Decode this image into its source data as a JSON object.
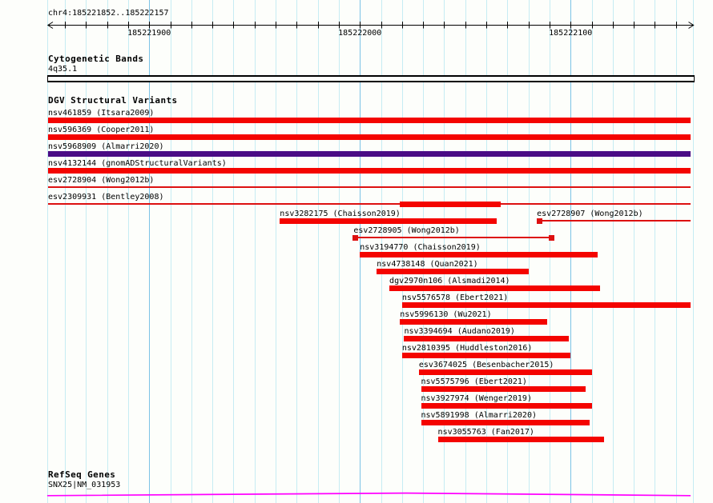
{
  "tracks": {
    "cytobands": {
      "title": "Cytogenetic Bands",
      "band": "4q35.1"
    },
    "dgv": {
      "title": "DGV Structural Variants"
    },
    "refseq": {
      "title": "RefSeq Genes",
      "gene": "SNX25|NM_031953"
    }
  },
  "colors": {
    "bar_red": "#f40400",
    "bar_purple": "#4a0c85",
    "thin_red": "#dd1010",
    "gene_magenta": "#ff00ff",
    "grid_minor": "#c6ecf3",
    "grid_major": "#7cc3e6",
    "ruler_black": "#000000",
    "background": "#fdfefb"
  },
  "chart_data": {
    "type": "genome-tracks",
    "view": {
      "chrom": "chr4",
      "start": 185221852,
      "end": 185222157,
      "label": "chr4:185221852..185222157"
    },
    "ruler": {
      "minor_step_bp": 10,
      "major_ticks": [
        {
          "bp": 185221900,
          "label": "185221900"
        },
        {
          "bp": 185222000,
          "label": "185222000"
        },
        {
          "bp": 185222100,
          "label": "185222100"
        }
      ]
    },
    "cytoband": {
      "start": 185221852,
      "end": 185222157
    },
    "variant_rows": [
      [
        {
          "id": "nsv461859",
          "label": "nsv461859 (Itsara2009)",
          "glyph": "bar",
          "start": 185221852,
          "end": 185222157,
          "color": "bar_red"
        }
      ],
      [
        {
          "id": "nsv596369",
          "label": "nsv596369 (Cooper2011)",
          "glyph": "bar",
          "start": 185221852,
          "end": 185222157,
          "color": "bar_red"
        }
      ],
      [
        {
          "id": "nsv5968909",
          "label": "nsv5968909 (Almarri2020)",
          "glyph": "bar",
          "start": 185221852,
          "end": 185222157,
          "color": "bar_purple"
        }
      ],
      [
        {
          "id": "nsv4132144",
          "label": "nsv4132144 (gnomADStructuralVariants)",
          "glyph": "bar",
          "start": 185221852,
          "end": 185222157,
          "color": "bar_red"
        }
      ],
      [
        {
          "id": "esv2728904",
          "label": "esv2728904 (Wong2012b)",
          "glyph": "line",
          "start": 185221852,
          "end": 185222157,
          "color": "thin_red"
        }
      ],
      [
        {
          "id": "esv2309931",
          "label": "esv2309931 (Bentley2008)",
          "glyph": "line-bar",
          "start": 185221852,
          "end": 185222157,
          "seg_start": 185222019,
          "seg_end": 185222067,
          "color": "thin_red",
          "seg_color": "bar_red"
        }
      ],
      [
        {
          "id": "nsv3282175",
          "label": "nsv3282175 (Chaisson2019)",
          "glyph": "bar",
          "start": 185221962,
          "end": 185222065,
          "color": "bar_red"
        },
        {
          "id": "esv2728907",
          "label": "esv2728907 (Wong2012b)",
          "glyph": "sq-line",
          "start": 185222084,
          "end": 185222157,
          "color": "thin_red"
        }
      ],
      [
        {
          "id": "esv2728905",
          "label": "esv2728905 (Wong2012b)",
          "glyph": "sq-line-sq",
          "start": 185221997,
          "end": 185222092,
          "color": "thin_red"
        }
      ],
      [
        {
          "id": "nsv3194770",
          "label": "nsv3194770 (Chaisson2019)",
          "glyph": "bar",
          "start": 185222000,
          "end": 185222113,
          "color": "bar_red"
        }
      ],
      [
        {
          "id": "nsv4738148",
          "label": "nsv4738148 (Quan2021)",
          "glyph": "bar",
          "start": 185222008,
          "end": 185222080,
          "color": "bar_red"
        }
      ],
      [
        {
          "id": "dgv2970n106",
          "label": "dgv2970n106 (Alsmadi2014)",
          "glyph": "bar",
          "start": 185222014,
          "end": 185222114,
          "color": "bar_red"
        }
      ],
      [
        {
          "id": "nsv5576578",
          "label": "nsv5576578 (Ebert2021)",
          "glyph": "bar",
          "start": 185222020,
          "end": 185222157,
          "color": "bar_red"
        }
      ],
      [
        {
          "id": "nsv5996130",
          "label": "nsv5996130 (Wu2021)",
          "glyph": "bar",
          "start": 185222019,
          "end": 185222089,
          "color": "bar_red"
        }
      ],
      [
        {
          "id": "nsv3394694",
          "label": "nsv3394694 (Audano2019)",
          "glyph": "bar",
          "start": 185222021,
          "end": 185222099,
          "color": "bar_red"
        }
      ],
      [
        {
          "id": "nsv2810395",
          "label": "nsv2810395 (Huddleston2016)",
          "glyph": "bar",
          "start": 185222020,
          "end": 185222100,
          "color": "bar_red"
        }
      ],
      [
        {
          "id": "esv3674025",
          "label": "esv3674025 (Besenbacher2015)",
          "glyph": "bar",
          "start": 185222028,
          "end": 185222110,
          "color": "bar_red"
        }
      ],
      [
        {
          "id": "nsv5575796",
          "label": "nsv5575796 (Ebert2021)",
          "glyph": "bar",
          "start": 185222029,
          "end": 185222107,
          "color": "bar_red"
        }
      ],
      [
        {
          "id": "nsv3927974",
          "label": "nsv3927974 (Wenger2019)",
          "glyph": "bar",
          "start": 185222029,
          "end": 185222110,
          "color": "bar_red"
        }
      ],
      [
        {
          "id": "nsv5891998",
          "label": "nsv5891998 (Almarri2020)",
          "glyph": "bar",
          "start": 185222029,
          "end": 185222109,
          "color": "bar_red"
        }
      ],
      [
        {
          "id": "nsv3055763",
          "label": "nsv3055763 (Fan2017)",
          "glyph": "bar",
          "start": 185222037,
          "end": 185222116,
          "color": "bar_red"
        }
      ]
    ],
    "refseq_gene": {
      "start": 185221852,
      "end": 185222157
    }
  }
}
